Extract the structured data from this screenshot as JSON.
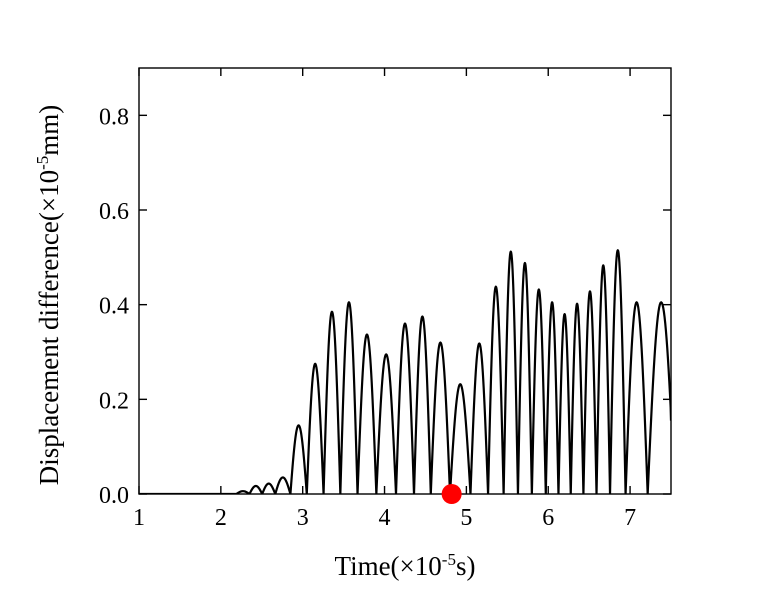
{
  "chart_data": {
    "type": "line",
    "xlabel": {
      "prefix": "Time(×10",
      "sup": "-5",
      "suffix": "s)"
    },
    "ylabel": {
      "prefix": "Displacement difference(×10",
      "sup": "-5",
      "suffix": "mm)"
    },
    "xlim": [
      1,
      7.5
    ],
    "ylim": [
      0,
      0.9
    ],
    "xticks": [
      1,
      2,
      3,
      4,
      5,
      6,
      7
    ],
    "yticks": [
      0.0,
      0.2,
      0.4,
      0.6,
      0.8
    ],
    "xtick_labels": [
      "1",
      "2",
      "3",
      "4",
      "5",
      "6",
      "7"
    ],
    "ytick_labels": [
      "0.0",
      "0.2",
      "0.4",
      "0.6",
      "0.8"
    ],
    "series": [
      {
        "color": "#000000",
        "description_note": "",
        "peaks": [
          {
            "x": 2.27,
            "y": 0.006
          },
          {
            "x": 2.43,
            "y": 0.017
          },
          {
            "x": 2.58,
            "y": 0.022
          },
          {
            "x": 2.75,
            "y": 0.035
          },
          {
            "x": 2.95,
            "y": 0.145
          },
          {
            "x": 3.15,
            "y": 0.275
          },
          {
            "x": 3.36,
            "y": 0.385
          },
          {
            "x": 3.56,
            "y": 0.405
          },
          {
            "x": 3.78,
            "y": 0.337
          },
          {
            "x": 4.02,
            "y": 0.295
          },
          {
            "x": 4.26,
            "y": 0.36
          },
          {
            "x": 4.46,
            "y": 0.375
          },
          {
            "x": 4.67,
            "y": 0.32
          },
          {
            "x": 4.93,
            "y": 0.232
          },
          {
            "x": 5.17,
            "y": 0.318
          },
          {
            "x": 5.36,
            "y": 0.438
          },
          {
            "x": 5.55,
            "y": 0.512
          },
          {
            "x": 5.71,
            "y": 0.488
          },
          {
            "x": 5.89,
            "y": 0.432
          },
          {
            "x": 6.05,
            "y": 0.405
          },
          {
            "x": 6.2,
            "y": 0.38
          },
          {
            "x": 6.35,
            "y": 0.402
          },
          {
            "x": 6.51,
            "y": 0.428
          },
          {
            "x": 6.67,
            "y": 0.483
          },
          {
            "x": 6.84,
            "y": 0.515
          },
          {
            "x": 7.05,
            "y": 0.405
          },
          {
            "x": 7.38,
            "y": 0.405
          }
        ]
      }
    ],
    "marker": {
      "x": 4.82,
      "y": 0.0,
      "color": "#ff0000"
    }
  }
}
